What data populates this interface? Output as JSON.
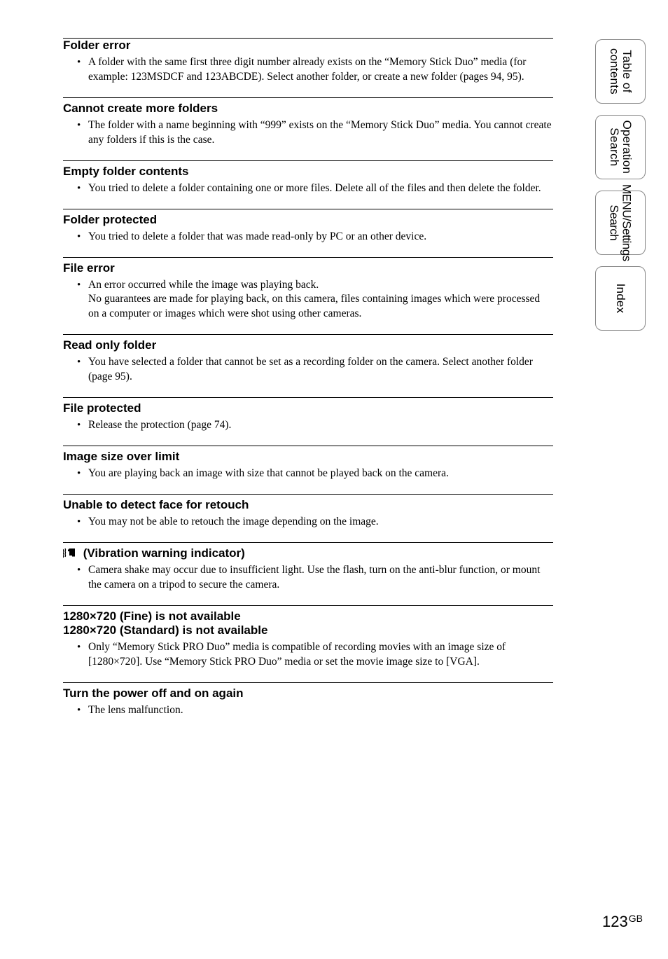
{
  "sections": [
    {
      "title": "Folder error",
      "items": [
        "A folder with the same first three digit number already exists on the “Memory Stick Duo” media (for example: 123MSDCF and 123ABCDE). Select another folder, or create a new folder (pages 94, 95)."
      ]
    },
    {
      "title": "Cannot create more folders",
      "items": [
        "The folder with a name beginning with “999” exists on the “Memory Stick Duo” media. You cannot create any folders if this is the case."
      ]
    },
    {
      "title": "Empty folder contents",
      "items": [
        "You tried to delete a folder containing one or more files. Delete all of the files and then delete the folder."
      ]
    },
    {
      "title": "Folder protected",
      "items": [
        "You tried to delete a folder that was made read-only by PC or an other device."
      ]
    },
    {
      "title": "File error",
      "items": [
        "An error occurred while the image was playing back.\nNo guarantees are made for playing back, on this camera, files containing images which were processed on a computer or images which were shot using other cameras."
      ]
    },
    {
      "title": "Read only folder",
      "items": [
        "You have selected a folder that cannot be set as a recording folder on the camera. Select another folder (page 95)."
      ]
    },
    {
      "title": "File protected",
      "items": [
        "Release the protection (page 74)."
      ]
    },
    {
      "title": "Image size over limit",
      "items": [
        "You are playing back an image with size that cannot be played back on the camera."
      ]
    },
    {
      "title": "Unable to detect face for retouch",
      "items": [
        "You may not be able to retouch the image depending on the image."
      ]
    },
    {
      "title": " (Vibration warning indicator)",
      "icon": true,
      "items": [
        "Camera shake may occur due to insufficient light. Use the flash, turn on the anti-blur function, or mount the camera on a tripod to secure the camera."
      ]
    },
    {
      "title": "1280×720 (Fine) is not available\n1280×720 (Standard) is not available",
      "items": [
        "Only “Memory Stick PRO Duo” media is compatible of recording movies with an image size of [1280×720]. Use “Memory Stick PRO Duo” media or set the movie image size to [VGA]."
      ]
    },
    {
      "title": "Turn the power off and on again",
      "items": [
        "The lens malfunction."
      ]
    }
  ],
  "tabs": [
    {
      "label": "Table of\ncontents",
      "name": "tab-contents"
    },
    {
      "label": "Operation\nSearch",
      "name": "tab-operation-search"
    },
    {
      "label": "MENU/Settings\nSearch",
      "name": "tab-menu-settings-search",
      "narrow": true
    },
    {
      "label": "Index",
      "name": "tab-index"
    }
  ],
  "page_number": "123",
  "page_suffix": "GB",
  "colors": {
    "rule": "#000000",
    "tab_border": "#888888",
    "text": "#000000",
    "bg": "#ffffff"
  }
}
